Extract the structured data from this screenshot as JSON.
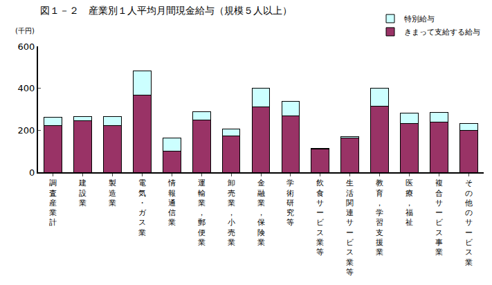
{
  "chart_data": {
    "type": "bar",
    "title": "図１－２　産業別１人平均月間現金給与（規模５人以上）",
    "y_label": "(千円)",
    "categories": [
      "調査産業計",
      "建設業",
      "製造業",
      "電気・ガス業",
      "情報通信業",
      "運輸業，郵便業",
      "卸売業，小売業",
      "金融業，保険業",
      "学術研究等",
      "飲食サービス業等",
      "生活関連サービス業等",
      "教育，学習支援業",
      "医療，福祉",
      "複合サービス事業",
      "その他のサービス業"
    ],
    "series": [
      {
        "name": "きまって支給する給与",
        "color": "#993366",
        "values": [
          221,
          246,
          221,
          367,
          101,
          248,
          174,
          311,
          269,
          111,
          162,
          314,
          234,
          240,
          198
        ]
      },
      {
        "name": "特別給与",
        "color": "#ccffff",
        "values": [
          42,
          20,
          44,
          117,
          61,
          40,
          33,
          89,
          70,
          4,
          7,
          87,
          49,
          45,
          34
        ]
      }
    ],
    "stacked": true,
    "legend": "top right",
    "grid": false,
    "ylim": [
      0,
      600
    ],
    "yticks": [
      0,
      200,
      400,
      600
    ]
  }
}
